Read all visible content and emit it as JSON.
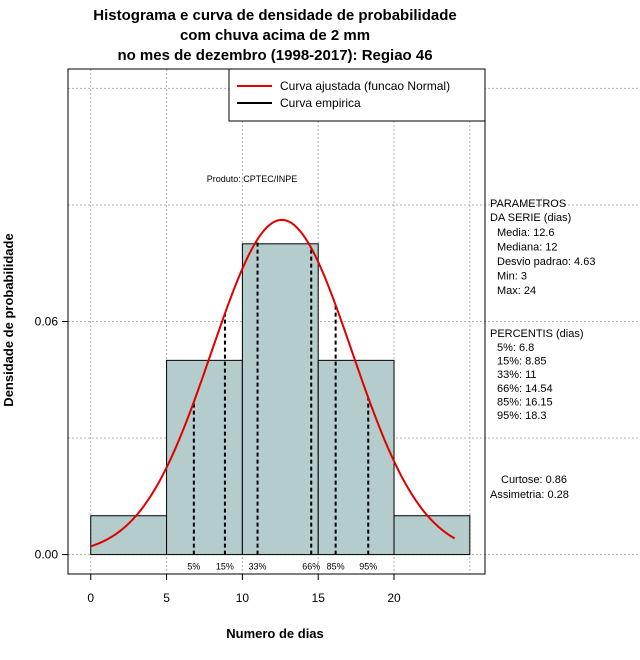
{
  "chart_data": {
    "type": "histogram",
    "title": [
      "Histograma e curva de densidade de probabilidade",
      "com chuva acima de 2 mm",
      "no mes de dezembro (1998-2017): Regiao 46"
    ],
    "xlabel": "Numero de dias",
    "ylabel": "Densidade de probabilidade",
    "xlim": [
      -1.5,
      26
    ],
    "ylim": [
      -0.005,
      0.125
    ],
    "x_ticks": [
      0,
      5,
      10,
      15,
      20
    ],
    "y_ticks": [
      0.0,
      0.06
    ],
    "y_tick_labels": [
      "0.00",
      "0.06"
    ],
    "grid_x": [
      0,
      5,
      10,
      15,
      20,
      25
    ],
    "grid_y": [
      0.0,
      0.03,
      0.06,
      0.09,
      0.12
    ],
    "bins": [
      {
        "from": 0,
        "to": 5,
        "density": 0.01
      },
      {
        "from": 5,
        "to": 10,
        "density": 0.05
      },
      {
        "from": 10,
        "to": 15,
        "density": 0.08
      },
      {
        "from": 15,
        "to": 20,
        "density": 0.05
      },
      {
        "from": 20,
        "to": 25,
        "density": 0.01
      }
    ],
    "bar_color": "#b4cccc",
    "curve_color": "#e00000",
    "curve": {
      "name": "Curva ajustada (funcao Normal)",
      "mean": 12.6,
      "sd": 4.63,
      "from": 0,
      "to": 24
    },
    "percentile_lines": [
      {
        "label": "5%",
        "x": 6.8
      },
      {
        "label": "15%",
        "x": 8.85
      },
      {
        "label": "33%",
        "x": 11
      },
      {
        "label": "66%",
        "x": 14.54
      },
      {
        "label": "85%",
        "x": 16.15
      },
      {
        "label": "95%",
        "x": 18.3
      }
    ],
    "legend": [
      {
        "label": "Curva ajustada (funcao Normal)",
        "color": "#e00000"
      },
      {
        "label": "Curva empirica",
        "color": "#000000"
      }
    ],
    "legend_position": "top-right",
    "annotation": "Produto: CPTEC/INPE"
  },
  "side_panel": {
    "params_title": [
      "PARAMETROS",
      "DA SERIE (dias)"
    ],
    "params": [
      "Media: 12.6",
      "Mediana: 12",
      "Desvio padrao: 4.63",
      "Min: 3",
      "Max: 24"
    ],
    "percentis_title": "PERCENTIS (dias)",
    "percentis": [
      "5%: 6.8",
      "15%: 8.85",
      "33%: 11",
      "66%: 14.54",
      "85%: 16.15",
      "95%: 18.3"
    ],
    "curtose": "Curtose: 0.86",
    "assimetria": "Assimetria: 0.28"
  }
}
